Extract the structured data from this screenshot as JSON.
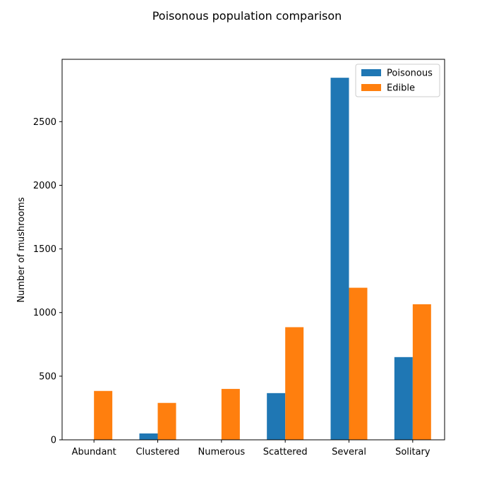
{
  "chart_data": {
    "type": "bar",
    "title": "Poisonous population comparison",
    "xlabel": "",
    "ylabel": "Number of mushrooms",
    "categories": [
      "Abundant",
      "Clustered",
      "Numerous",
      "Scattered",
      "Several",
      "Solitary"
    ],
    "series": [
      {
        "name": "Poisonous",
        "color": "#1f77b4",
        "values": [
          0,
          50,
          0,
          367,
          2845,
          650
        ]
      },
      {
        "name": "Edible",
        "color": "#ff7f0e",
        "values": [
          384,
          290,
          400,
          885,
          1195,
          1065
        ]
      }
    ],
    "ylim": [
      0,
      2990
    ],
    "yticks": [
      0,
      500,
      1000,
      1500,
      2000,
      2500
    ],
    "grid": false,
    "legend_position": "top-right"
  }
}
